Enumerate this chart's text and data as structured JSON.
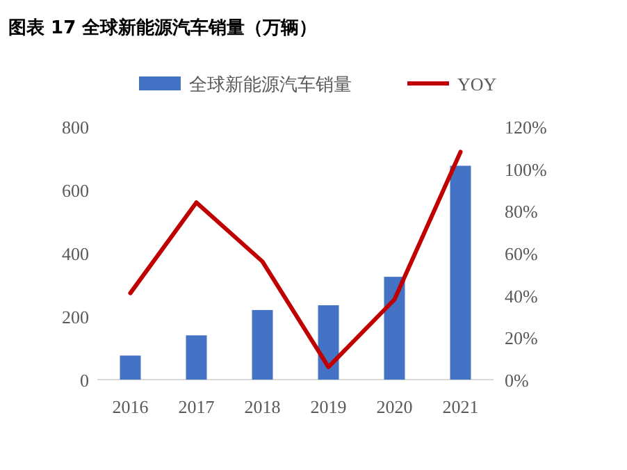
{
  "chart_data": {
    "type": "bar",
    "title": "图表 17  全球新能源汽车销量（万辆）",
    "categories": [
      "2016",
      "2017",
      "2018",
      "2019",
      "2020",
      "2021"
    ],
    "series": [
      {
        "name": "全球新能源汽车销量",
        "color": "#4472c4",
        "values": [
          76,
          140,
          220,
          235,
          325,
          676
        ]
      },
      {
        "name": "YOY",
        "type": "line",
        "axis": "y2",
        "color": "#c00000",
        "values": [
          41,
          84,
          56,
          6,
          38,
          108
        ]
      }
    ],
    "ylim": [
      0,
      800
    ],
    "yticks": [
      0,
      200,
      400,
      600,
      800
    ],
    "y2lim": [
      0,
      120
    ],
    "y2ticks": [
      {
        "value": 0,
        "label": "0%"
      },
      {
        "value": 20,
        "label": "20%"
      },
      {
        "value": 40,
        "label": "40%"
      },
      {
        "value": 60,
        "label": "60%"
      },
      {
        "value": 80,
        "label": "80%"
      },
      {
        "value": 100,
        "label": "100%"
      },
      {
        "value": 120,
        "label": "120%"
      }
    ],
    "legend": "top",
    "grid": false,
    "marker": "none",
    "line_style": "solid"
  }
}
